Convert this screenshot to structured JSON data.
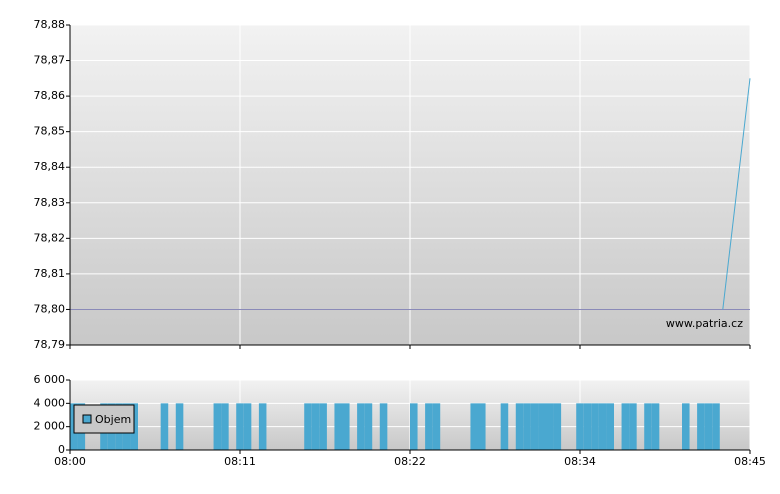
{
  "chart_data": {
    "type": "stock",
    "watermark": "www.patria.cz",
    "xlim": [
      0,
      45
    ],
    "xticks": [
      {
        "value": 0,
        "label": "08:00"
      },
      {
        "value": 11.25,
        "label": "08:11"
      },
      {
        "value": 22.5,
        "label": "08:22"
      },
      {
        "value": 33.75,
        "label": "08:34"
      },
      {
        "value": 45,
        "label": "08:45"
      }
    ],
    "price": {
      "ylim": [
        78.79,
        78.88
      ],
      "yticks": [
        {
          "value": 78.79,
          "label": "78,79"
        },
        {
          "value": 78.8,
          "label": "78,80"
        },
        {
          "value": 78.81,
          "label": "78,81"
        },
        {
          "value": 78.82,
          "label": "78,82"
        },
        {
          "value": 78.83,
          "label": "78,83"
        },
        {
          "value": 78.84,
          "label": "78,84"
        },
        {
          "value": 78.85,
          "label": "78,85"
        },
        {
          "value": 78.86,
          "label": "78,86"
        },
        {
          "value": 78.87,
          "label": "78,87"
        },
        {
          "value": 78.88,
          "label": "78,88"
        }
      ],
      "reference": 78.8,
      "reference_color": "#8a8ab8",
      "x": [
        43.2,
        45
      ],
      "values": [
        78.8,
        78.865
      ],
      "color": "#4aa8d0"
    },
    "volume": {
      "name": "Objem",
      "color": "#4aa8d0",
      "ylim": [
        0,
        6000
      ],
      "yticks": [
        0,
        {
          "value": 2000,
          "label": "2 000"
        },
        {
          "value": 4000,
          "label": "4 000"
        },
        {
          "value": 6000,
          "label": "6 000"
        }
      ],
      "x": [
        0,
        0.5,
        2,
        2.5,
        3,
        3.5,
        4,
        6,
        7,
        9.5,
        10,
        11,
        11.5,
        12.5,
        15.5,
        16,
        16.5,
        17.5,
        18,
        19,
        19.5,
        20.5,
        22.5,
        23.5,
        24,
        26.5,
        27,
        28.5,
        29.5,
        30,
        30.5,
        31,
        31.5,
        32,
        33.5,
        34,
        34.5,
        35,
        35.5,
        36.5,
        37,
        38,
        38.5,
        40.5,
        41.5,
        42,
        42.5
      ],
      "values": [
        4000,
        4000,
        4000,
        4000,
        4000,
        4000,
        4000,
        4000,
        4000,
        4000,
        4000,
        4000,
        4000,
        4000,
        4000,
        4000,
        4000,
        4000,
        4000,
        4000,
        4000,
        4000,
        4000,
        4000,
        4000,
        4000,
        4000,
        4000,
        4000,
        4000,
        4000,
        4000,
        4000,
        4000,
        4000,
        4000,
        4000,
        4000,
        4000,
        4000,
        4000,
        4000,
        4000,
        4000,
        4000,
        4000,
        4000
      ]
    }
  }
}
